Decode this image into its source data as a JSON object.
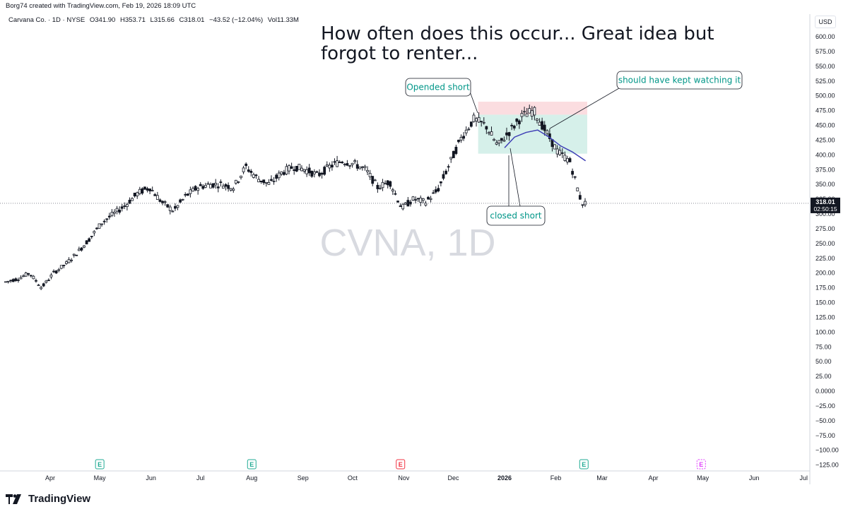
{
  "header": {
    "attribution": "Borg74 created with TradingView.com, Feb 19, 2026 18:09 UTC"
  },
  "symbol_bar": {
    "name": "Carvana Co. · 1D · NYSE",
    "open": "O341.90",
    "high": "H353.71",
    "low": "L315.66",
    "close": "C318.01",
    "change": "−43.52 (−12.04%)",
    "volume": "Vol11.33M"
  },
  "currency": "USD",
  "watermark": "CVNA, 1D",
  "last_price": {
    "price": "318.01",
    "countdown": "02:50:15"
  },
  "footer": {
    "brand": "TradingView"
  },
  "colors": {
    "up": "#131722",
    "down": "#131722",
    "target_zone": "#d6f0ea",
    "stop_zone": "#fbdde0",
    "annotation_text": "#009688",
    "ma_line": "#3f3fb6",
    "earnings_green": "#22ab94",
    "earnings_red": "#f23645",
    "earnings_purple": "#e040fb"
  },
  "chart_data": {
    "type": "candlestick",
    "title": "How often does this occur... Great idea but forgot to renter...",
    "x_ticks": [
      "Apr",
      "May",
      "Jun",
      "Jul",
      "Aug",
      "Sep",
      "Oct",
      "Nov",
      "Dec",
      "2026",
      "Feb",
      "Mar",
      "Apr",
      "May",
      "Jun",
      "Jul"
    ],
    "y_ticks": [
      "600.00",
      "575.00",
      "550.00",
      "525.00",
      "500.00",
      "475.00",
      "450.00",
      "425.00",
      "400.00",
      "375.00",
      "350.00",
      "325.00",
      "300.00",
      "275.00",
      "250.00",
      "225.00",
      "200.00",
      "175.00",
      "150.00",
      "125.00",
      "100.00",
      "75.00",
      "50.00",
      "25.00",
      "0.0000",
      "−25.00",
      "−50.00",
      "−75.00",
      "−100.00",
      "−125.00"
    ],
    "ylim": [
      -130,
      625
    ],
    "price_path": [
      [
        "2025-03-17",
        185
      ],
      [
        "2025-03-24",
        190
      ],
      [
        "2025-03-31",
        200
      ],
      [
        "2025-04-07",
        175
      ],
      [
        "2025-04-14",
        200
      ],
      [
        "2025-04-21",
        215
      ],
      [
        "2025-04-28",
        235
      ],
      [
        "2025-05-05",
        258
      ],
      [
        "2025-05-12",
        285
      ],
      [
        "2025-05-19",
        300
      ],
      [
        "2025-05-26",
        315
      ],
      [
        "2025-06-02",
        335
      ],
      [
        "2025-06-09",
        345
      ],
      [
        "2025-06-16",
        320
      ],
      [
        "2025-06-23",
        305
      ],
      [
        "2025-06-30",
        330
      ],
      [
        "2025-07-07",
        345
      ],
      [
        "2025-07-14",
        350
      ],
      [
        "2025-07-21",
        350
      ],
      [
        "2025-07-28",
        345
      ],
      [
        "2025-08-04",
        380
      ],
      [
        "2025-08-11",
        360
      ],
      [
        "2025-08-18",
        350
      ],
      [
        "2025-08-25",
        370
      ],
      [
        "2025-09-01",
        380
      ],
      [
        "2025-09-08",
        375
      ],
      [
        "2025-09-15",
        365
      ],
      [
        "2025-09-22",
        380
      ],
      [
        "2025-09-29",
        390
      ],
      [
        "2025-10-06",
        385
      ],
      [
        "2025-10-13",
        375
      ],
      [
        "2025-10-20",
        345
      ],
      [
        "2025-10-27",
        355
      ],
      [
        "2025-11-03",
        310
      ],
      [
        "2025-11-10",
        325
      ],
      [
        "2025-11-17",
        320
      ],
      [
        "2025-11-24",
        340
      ],
      [
        "2025-12-01",
        385
      ],
      [
        "2025-12-08",
        430
      ],
      [
        "2025-12-15",
        460
      ],
      [
        "2025-12-22",
        450
      ],
      [
        "2025-12-29",
        415
      ],
      [
        "2026-01-05",
        440
      ],
      [
        "2026-01-12",
        465
      ],
      [
        "2026-01-19",
        475
      ],
      [
        "2026-01-26",
        440
      ],
      [
        "2026-02-02",
        405
      ],
      [
        "2026-02-09",
        390
      ],
      [
        "2026-02-16",
        318
      ]
    ],
    "candle_count": 230,
    "moving_average": [
      [
        "2026-01-01",
        412
      ],
      [
        "2026-01-07",
        430
      ],
      [
        "2026-01-14",
        438
      ],
      [
        "2026-01-21",
        442
      ],
      [
        "2026-01-28",
        430
      ],
      [
        "2026-02-04",
        415
      ],
      [
        "2026-02-11",
        405
      ],
      [
        "2026-02-19",
        390
      ]
    ],
    "position": {
      "entry_date": "2025-12-16",
      "end_date": "2026-02-20",
      "entry": 468,
      "stop": 490,
      "target": 402
    },
    "annotations": [
      {
        "text": "Opended short",
        "date": "2025-12-18",
        "price": 470
      },
      {
        "text": "closed short",
        "date": "2026-01-05",
        "price": 402
      },
      {
        "text": "should have kept watching it",
        "date": "2026-02-02",
        "price": 440
      }
    ],
    "earnings_events": [
      {
        "date": "2025-05-01",
        "type": "past",
        "label": "E"
      },
      {
        "date": "2025-08-01",
        "type": "past",
        "label": "E"
      },
      {
        "date": "2025-10-30",
        "type": "past_miss",
        "label": "E"
      },
      {
        "date": "2026-02-18",
        "type": "past",
        "label": "E"
      },
      {
        "date": "2026-04-30",
        "type": "upcoming",
        "label": "E"
      }
    ]
  }
}
